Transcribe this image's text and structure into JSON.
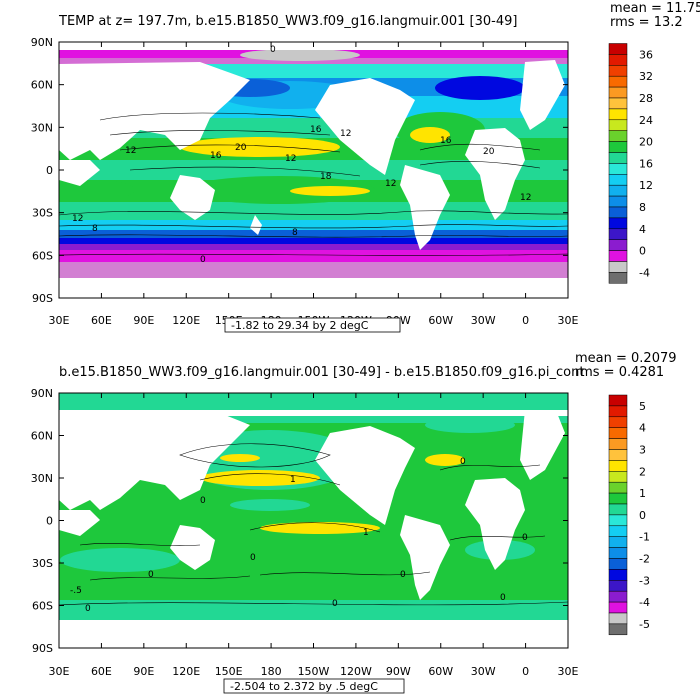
{
  "panels": [
    {
      "title": "TEMP at z= 197.7m, b.e15.B1850_WW3.f09_g16.langmuir.001 [30-49]",
      "stat_mean": "mean = 11.75",
      "stat_rms": "rms = 13.2",
      "range_label": "-1.82 to 29.34 by 2 degC",
      "lat_labels": [
        "90N",
        "60N",
        "30N",
        "0",
        "30S",
        "60S",
        "90S"
      ],
      "lon_labels": [
        "30E",
        "60E",
        "90E",
        "120E",
        "150E",
        "180",
        "150W",
        "120W",
        "90W",
        "60W",
        "30W",
        "0",
        "30E"
      ],
      "colorbar_labels": [
        "36",
        "32",
        "28",
        "24",
        "20",
        "16",
        "12",
        "8",
        "4",
        "0",
        "-4"
      ],
      "colorbar_colors": [
        "#c80000",
        "#e21a00",
        "#f04000",
        "#f86a00",
        "#fb9a22",
        "#ffc23c",
        "#ffe400",
        "#c8e81e",
        "#6ad22c",
        "#1ec83c",
        "#22d894",
        "#2ae8d8",
        "#14cef2",
        "#11b0ee",
        "#0d8ee8",
        "#0a60d8",
        "#0008e0",
        "#3c16c8",
        "#8b1ccf",
        "#e012e0",
        "#c8c8c8",
        "#6e6e6e"
      ],
      "contour_labels": [
        "0",
        "16",
        "12",
        "20",
        "16",
        "12",
        "18",
        "12",
        "8",
        "12",
        "0",
        "12",
        "16",
        "20",
        "12",
        "8"
      ]
    },
    {
      "title": "b.e15.B1850_WW3.f09_g16.langmuir.001 [30-49] - b.e15.B1850.f09_g16.pi_cont",
      "stat_mean": "mean = 0.2079",
      "stat_rms": "rms = 0.4281",
      "range_label": "-2.504 to 2.372 by .5 degC",
      "lat_labels": [
        "90N",
        "60N",
        "30N",
        "0",
        "30S",
        "60S",
        "90S"
      ],
      "lon_labels": [
        "30E",
        "60E",
        "90E",
        "120E",
        "150E",
        "180",
        "150W",
        "120W",
        "90W",
        "60W",
        "30W",
        "0",
        "30E"
      ],
      "colorbar_labels": [
        "5",
        "4",
        "3",
        "2",
        "1",
        "0",
        "-1",
        "-2",
        "-3",
        "-4",
        "-5"
      ],
      "colorbar_colors": [
        "#c80000",
        "#e21a00",
        "#f04000",
        "#f86a00",
        "#fb9a22",
        "#ffc23c",
        "#ffe400",
        "#c8e81e",
        "#6ad22c",
        "#1ec83c",
        "#22d894",
        "#2ae8d8",
        "#14cef2",
        "#11b0ee",
        "#0d8ee8",
        "#0a60d8",
        "#0008e0",
        "#3c16c8",
        "#8b1ccf",
        "#e012e0",
        "#c8c8c8",
        "#6e6e6e"
      ],
      "contour_labels": [
        "1",
        "0",
        "0",
        "0",
        "-.5",
        "0",
        "1",
        "0",
        "0",
        "0",
        "0",
        "0"
      ]
    }
  ],
  "colors": {
    "land": "#ffffff",
    "frame": "#000000"
  }
}
